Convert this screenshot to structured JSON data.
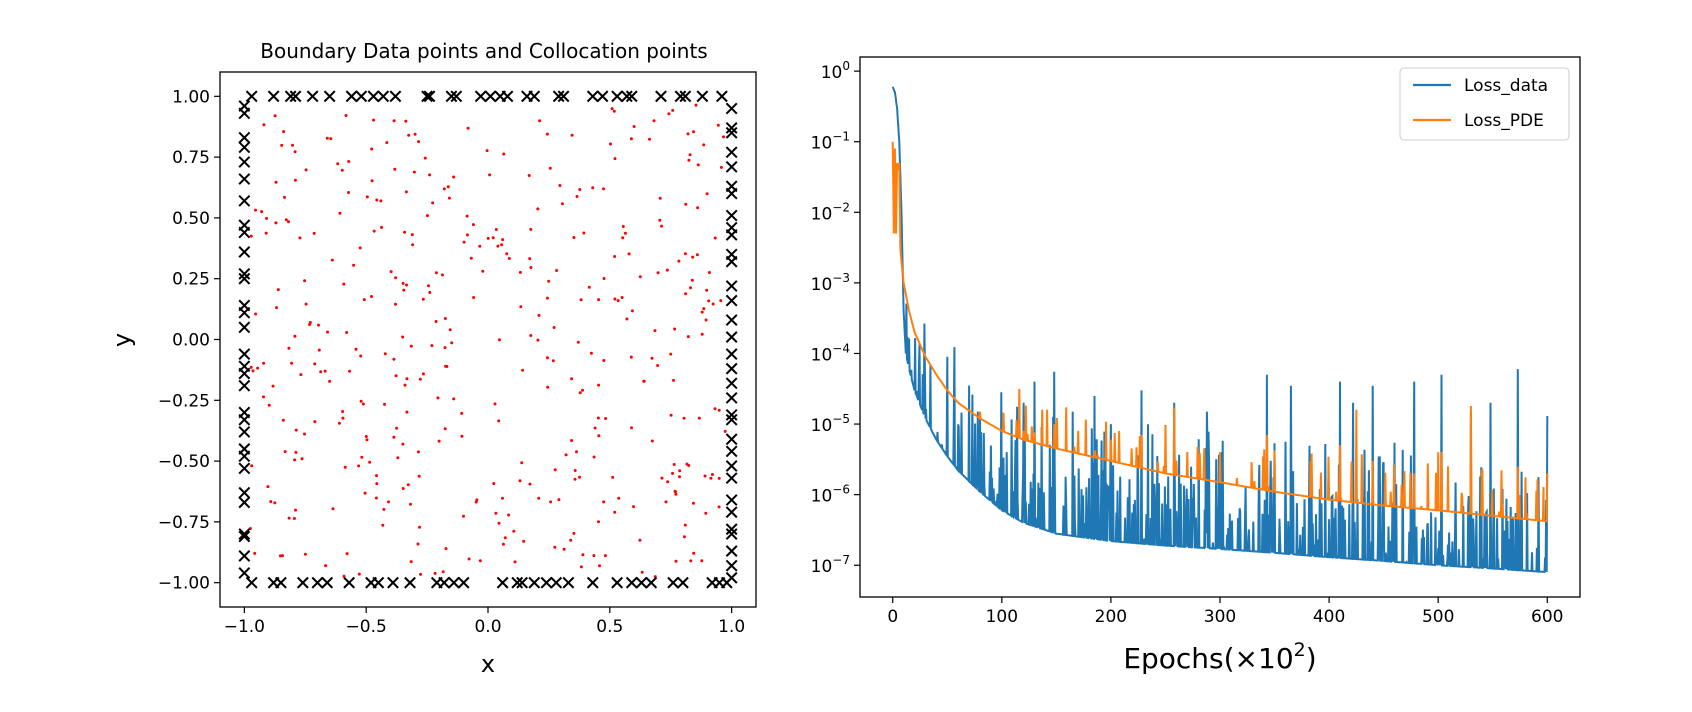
{
  "chart_data": [
    {
      "type": "scatter",
      "title": "Boundary Data points and Collocation points",
      "xlabel": "x",
      "ylabel": "y",
      "xlim": [
        -1.1,
        1.1
      ],
      "ylim": [
        -1.1,
        1.1
      ],
      "xticks": [
        -1.0,
        -0.5,
        0.0,
        0.5,
        1.0
      ],
      "xtick_labels": [
        "−1.0",
        "−0.5",
        "0.0",
        "0.5",
        "1.0"
      ],
      "yticks": [
        1.0,
        0.75,
        0.5,
        0.25,
        0.0,
        -0.25,
        -0.5,
        -0.75,
        -1.0
      ],
      "ytick_labels": [
        "1.00",
        "0.75",
        "0.50",
        "0.25",
        "0.00",
        "−0.25",
        "−0.50",
        "−0.75",
        "−1.00"
      ],
      "grid": false,
      "colors": {
        "boundary": "#000000",
        "collocation": "#ff0000"
      },
      "boundary_points": {
        "top_x": [
          -0.97,
          -0.88,
          -0.81,
          -0.79,
          -0.72,
          -0.65,
          -0.56,
          -0.52,
          -0.47,
          -0.43,
          -0.38,
          -0.25,
          -0.24,
          -0.15,
          -0.13,
          -0.03,
          0.01,
          0.05,
          0.08,
          0.16,
          0.19,
          0.29,
          0.31,
          0.43,
          0.47,
          0.53,
          0.57,
          0.59,
          0.71,
          0.79,
          0.81,
          0.88,
          0.96
        ],
        "bottom_x": [
          -0.97,
          -0.88,
          -0.85,
          -0.76,
          -0.7,
          -0.66,
          -0.57,
          -0.48,
          -0.45,
          -0.39,
          -0.32,
          -0.21,
          -0.18,
          -0.14,
          -0.1,
          0.06,
          0.12,
          0.14,
          0.19,
          0.24,
          0.28,
          0.33,
          0.43,
          0.53,
          0.59,
          0.63,
          0.67,
          0.76,
          0.8,
          0.92,
          0.95,
          0.98
        ],
        "left_y": [
          0.96,
          0.93,
          0.83,
          0.79,
          0.73,
          0.66,
          0.57,
          0.47,
          0.44,
          0.36,
          0.27,
          0.25,
          0.14,
          0.11,
          0.05,
          -0.06,
          -0.11,
          -0.14,
          -0.19,
          -0.3,
          -0.33,
          -0.38,
          -0.45,
          -0.48,
          -0.53,
          -0.63,
          -0.67,
          -0.8,
          -0.81,
          -0.89,
          -0.96
        ],
        "right_y": [
          0.95,
          0.87,
          0.85,
          0.77,
          0.71,
          0.63,
          0.6,
          0.51,
          0.46,
          0.43,
          0.35,
          0.32,
          0.22,
          0.16,
          0.08,
          0.01,
          -0.06,
          -0.12,
          -0.18,
          -0.24,
          -0.31,
          -0.33,
          -0.41,
          -0.46,
          -0.52,
          -0.57,
          -0.66,
          -0.71,
          -0.78,
          -0.8,
          -0.87,
          -0.93,
          -0.98
        ]
      },
      "collocation_points": {
        "count": 400,
        "distribution": "uniform random in [-1,1]×[-1,1]"
      }
    },
    {
      "type": "line",
      "xlabel": "Epochs(×10",
      "xlabel_sup": "2",
      "xlabel_end": ")",
      "ylabel": "",
      "xlim": [
        -30,
        630
      ],
      "ylim_log10": [
        -7.45,
        0.2
      ],
      "yscale": "log",
      "xticks": [
        0,
        100,
        200,
        300,
        400,
        500,
        600
      ],
      "xtick_labels": [
        "0",
        "100",
        "200",
        "300",
        "400",
        "500",
        "600"
      ],
      "ytick_exponents": [
        0,
        -1,
        -2,
        -3,
        -4,
        -5,
        -6,
        -7
      ],
      "ytick_base": "10",
      "ytick_sup_labels": [
        "0",
        "−1",
        "−2",
        "−3",
        "−4",
        "−5",
        "−6",
        "−7"
      ],
      "grid": false,
      "legend": {
        "position": "top-right",
        "entries": [
          "Loss_data",
          "Loss_PDE"
        ]
      },
      "series": [
        {
          "name": "Loss_data",
          "color": "#1f77b4",
          "x": [
            0,
            2,
            4,
            6,
            8,
            10,
            12,
            15,
            20,
            30,
            40,
            50,
            60,
            80,
            100,
            120,
            150,
            200,
            250,
            300,
            350,
            400,
            450,
            500,
            550,
            600
          ],
          "y": [
            0.6,
            0.5,
            0.3,
            0.1,
            0.01,
            0.0004,
            0.0001,
            6e-05,
            3e-05,
            1.2e-05,
            6e-06,
            3.5e-06,
            2.2e-06,
            1.1e-06,
            6e-07,
            4e-07,
            2.8e-07,
            2.2e-07,
            1.9e-07,
            1.7e-07,
            1.5e-07,
            1.3e-07,
            1.15e-07,
            1e-07,
            9e-08,
            8e-08
          ],
          "spike_x": [
            50,
            78,
            120,
            130,
            148,
            165,
            185,
            200,
            228,
            258,
            288,
            343,
            365,
            410,
            422,
            440,
            478,
            503,
            530,
            548,
            573,
            600
          ],
          "spike_y": [
            9e-05,
            1.5e-05,
            2e-05,
            4e-05,
            5.5e-05,
            1.5e-05,
            2.5e-05,
            1e-05,
            3e-05,
            2e-05,
            1.5e-05,
            5e-05,
            3.5e-05,
            4e-05,
            2e-05,
            3.5e-05,
            4e-05,
            5e-05,
            1.5e-05,
            2e-05,
            6e-05,
            1.3e-05
          ]
        },
        {
          "name": "Loss_PDE",
          "color": "#ff7f0e",
          "x": [
            0,
            1,
            2,
            3,
            4,
            5,
            6,
            7,
            8,
            10,
            15,
            20,
            30,
            40,
            50,
            60,
            80,
            100,
            120,
            150,
            200,
            250,
            300,
            350,
            400,
            450,
            500,
            550,
            600
          ],
          "y": [
            0.1,
            0.005,
            0.08,
            0.005,
            0.05,
            0.04,
            0.05,
            0.003,
            0.002,
            0.001,
            0.0004,
            0.0002,
            9e-05,
            5e-05,
            3e-05,
            2e-05,
            1.2e-05,
            8e-06,
            6e-06,
            4.5e-06,
            3e-06,
            2e-06,
            1.5e-06,
            1.1e-06,
            8.5e-07,
            7e-07,
            6e-07,
            5e-07,
            4.2e-07
          ],
          "spike_x": [
            50,
            80,
            120,
            148,
            170,
            200,
            228,
            258,
            300,
            343,
            383,
            410,
            425,
            440,
            478,
            500,
            503,
            530,
            573,
            600
          ],
          "spike_y": [
            3e-05,
            1.5e-05,
            8e-06,
            1e-05,
            8e-06,
            6e-06,
            7e-06,
            1.7e-05,
            4e-06,
            7e-06,
            3e-06,
            5e-06,
            1.6e-05,
            3e-06,
            2e-06,
            4e-06,
            4e-06,
            1.8e-05,
            2.5e-06,
            2e-06
          ]
        }
      ]
    }
  ]
}
